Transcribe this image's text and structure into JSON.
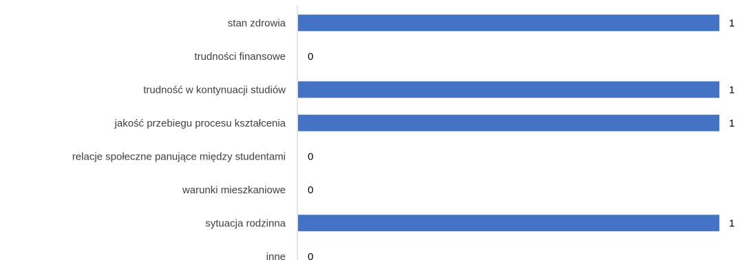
{
  "chart_data": {
    "type": "bar",
    "orientation": "horizontal",
    "categories": [
      "stan zdrowia",
      "trudności finansowe",
      "trudność w kontynuacji studiów",
      "jakość przebiegu procesu kształcenia",
      "relacje społeczne panujące między studentami",
      "warunki mieszkaniowe",
      "sytuacja rodzinna",
      "inne"
    ],
    "values": [
      1,
      0,
      1,
      1,
      0,
      0,
      1,
      0
    ],
    "data_labels": [
      "1",
      "0",
      "1",
      "1",
      "0",
      "0",
      "1",
      "0"
    ],
    "xlim": [
      0,
      1
    ],
    "grid": false,
    "legend": "none",
    "bar_color": "#4472C4"
  }
}
